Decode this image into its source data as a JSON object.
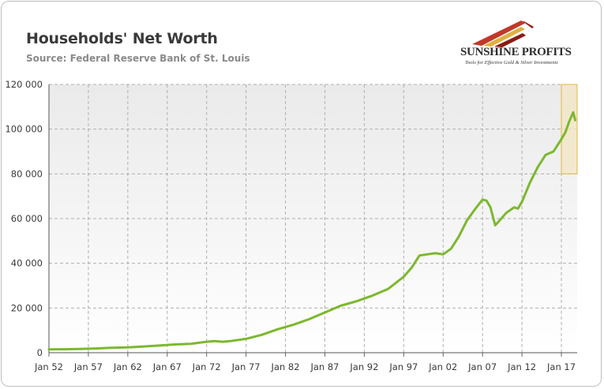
{
  "header": {
    "title": "Households' Net Worth",
    "subtitle": "Source: Federal Reserve Bank of St. Louis"
  },
  "logo": {
    "name": "SUNSHINE PROFITS",
    "tagline": "Tools for Effective Gold & Silver Investments",
    "colors": [
      "#c0392b",
      "#e0b040",
      "#8a1b12"
    ]
  },
  "colors": {
    "line": "#7cb82f",
    "plot_bg": "#eaeaea",
    "highlight_fill": "#f3e6c2",
    "highlight_stroke": "#e0b84a",
    "grid": "#b0b0b0"
  },
  "chart_data": {
    "type": "line",
    "title": "Households' Net Worth",
    "subtitle": "Source: Federal Reserve Bank of St. Louis",
    "xlabel": "",
    "ylabel": "",
    "x_tick_labels": [
      "Jan 52",
      "Jan 57",
      "Jan 62",
      "Jan 67",
      "Jan 72",
      "Jan 77",
      "Jan 82",
      "Jan 87",
      "Jan 92",
      "Jan 97",
      "Jan 02",
      "Jan 07",
      "Jan 12",
      "Jan 17"
    ],
    "y_tick_labels": [
      "0",
      "20 000",
      "40 000",
      "60 000",
      "80 000",
      "100 000",
      "120 000"
    ],
    "ylim": [
      0,
      120000
    ],
    "xlim": [
      1952.0,
      2019.0
    ],
    "grid": true,
    "highlight": {
      "x": [
        2017.0,
        2019.0
      ],
      "y": [
        80000,
        120000
      ]
    },
    "series": [
      {
        "x": [
          1952,
          1954,
          1956,
          1958,
          1960,
          1962,
          1964,
          1966,
          1968,
          1970,
          1972,
          1973,
          1974,
          1975,
          1977,
          1979,
          1981,
          1983,
          1985,
          1987,
          1989,
          1991,
          1993,
          1995,
          1997,
          1998,
          1999,
          2000,
          2001,
          2002,
          2003,
          2004,
          2005,
          2006,
          2007,
          2007.5,
          2008,
          2008.3,
          2008.6,
          2009,
          2010,
          2011,
          2011.5,
          2012,
          2013,
          2014,
          2015,
          2016,
          2017,
          2017.5,
          2018,
          2018.5,
          2018.75
        ],
        "y": [
          1500,
          1550,
          1650,
          1900,
          2200,
          2400,
          2800,
          3200,
          3700,
          4000,
          4900,
          5200,
          4900,
          5200,
          6200,
          8000,
          10500,
          12500,
          15000,
          18000,
          21000,
          23000,
          25500,
          28500,
          34000,
          38000,
          43500,
          44000,
          44500,
          44000,
          46500,
          52000,
          59000,
          64000,
          68500,
          68000,
          65000,
          61000,
          57000,
          58500,
          62500,
          65000,
          64500,
          67500,
          76000,
          83000,
          88500,
          90000,
          95500,
          98500,
          103500,
          107500,
          104000
        ]
      }
    ]
  }
}
